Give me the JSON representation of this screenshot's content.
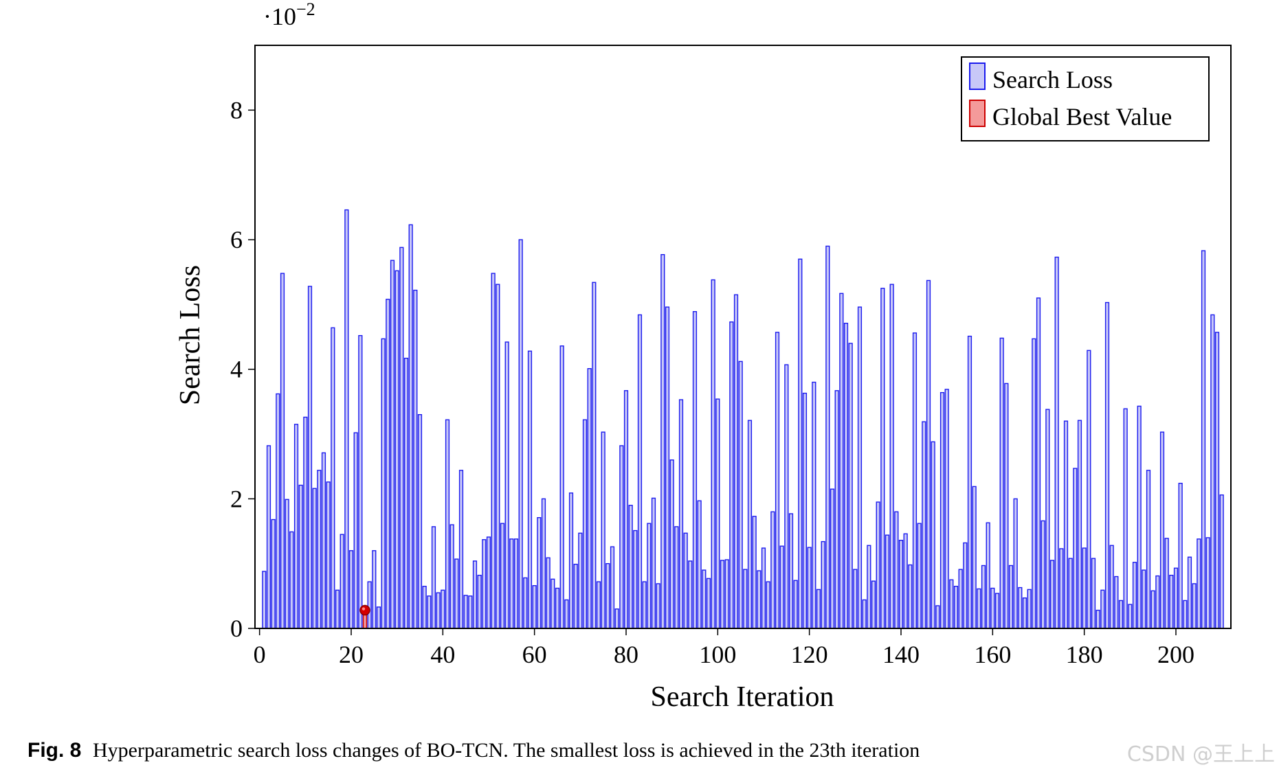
{
  "chart_data": {
    "type": "bar",
    "xlabel": "Search Iteration",
    "ylabel": "Search Loss",
    "scale_label": "·10",
    "scale_exponent": "−2",
    "xlim": [
      -1,
      212
    ],
    "ylim": [
      0,
      9
    ],
    "xticks": [
      0,
      20,
      40,
      60,
      80,
      100,
      120,
      140,
      160,
      180,
      200
    ],
    "yticks": [
      0,
      2,
      4,
      6,
      8
    ],
    "series": [
      {
        "name": "Search Loss",
        "color": "#1a1aee",
        "fill": "#c8c8f8",
        "x_start": 1,
        "values": [
          0.88,
          2.82,
          1.68,
          3.62,
          5.48,
          1.99,
          1.49,
          3.15,
          2.21,
          3.26,
          5.28,
          2.16,
          2.44,
          2.71,
          2.26,
          4.64,
          0.59,
          1.45,
          6.46,
          1.2,
          3.02,
          4.52,
          0.27,
          0.72,
          1.2,
          0.33,
          4.47,
          5.08,
          5.68,
          5.52,
          5.88,
          4.17,
          6.23,
          5.22,
          3.3,
          0.65,
          0.5,
          1.57,
          0.55,
          0.59,
          3.22,
          1.6,
          1.07,
          2.44,
          0.51,
          0.5,
          1.04,
          0.82,
          1.37,
          1.41,
          5.48,
          5.31,
          1.62,
          4.42,
          1.38,
          1.38,
          6.0,
          0.78,
          4.28,
          0.66,
          1.71,
          2.0,
          1.09,
          0.76,
          0.62,
          4.36,
          0.44,
          2.09,
          0.99,
          1.47,
          3.22,
          4.01,
          5.34,
          0.72,
          3.03,
          1.0,
          1.26,
          0.3,
          2.82,
          3.67,
          1.9,
          1.51,
          4.84,
          0.72,
          1.62,
          2.01,
          0.69,
          5.77,
          4.96,
          2.6,
          1.57,
          3.53,
          1.47,
          1.04,
          4.89,
          1.97,
          0.9,
          0.77,
          5.38,
          3.54,
          1.05,
          1.06,
          4.73,
          5.15,
          4.12,
          0.91,
          3.21,
          1.73,
          0.89,
          1.24,
          0.72,
          1.8,
          4.57,
          1.27,
          4.07,
          1.77,
          0.74,
          5.7,
          3.63,
          1.25,
          3.8,
          0.6,
          1.34,
          5.9,
          2.15,
          3.67,
          5.17,
          4.71,
          4.4,
          0.91,
          4.96,
          0.44,
          1.28,
          0.73,
          1.95,
          5.25,
          1.44,
          5.31,
          1.8,
          1.36,
          1.46,
          0.98,
          4.56,
          1.62,
          3.19,
          5.37,
          2.88,
          0.35,
          3.64,
          3.69,
          0.75,
          0.65,
          0.91,
          1.32,
          4.51,
          2.19,
          0.61,
          0.97,
          1.63,
          0.62,
          0.54,
          4.48,
          3.78,
          0.97,
          2.0,
          0.63,
          0.47,
          0.6,
          4.47,
          5.1,
          1.66,
          3.38,
          1.05,
          5.73,
          1.23,
          3.2,
          1.08,
          2.47,
          3.21,
          1.24,
          4.29,
          1.08,
          0.28,
          0.59,
          5.03,
          1.28,
          0.8,
          0.43,
          3.39,
          0.37,
          1.02,
          3.43,
          0.9,
          2.44,
          0.58,
          0.81,
          3.03,
          1.39,
          0.82,
          0.93,
          2.24,
          0.43,
          1.1,
          0.69,
          1.38,
          5.83,
          1.4,
          4.84,
          4.57,
          2.06
        ]
      },
      {
        "name": "Global Best Value",
        "color": "#cc0000",
        "fill": "#f49a9a",
        "x": 23,
        "value": 0.27
      }
    ],
    "legend": [
      {
        "label": "Search Loss"
      },
      {
        "label": "Global Best Value"
      }
    ],
    "legend_position": "top-right"
  },
  "caption": {
    "fig_label": "Fig. 8",
    "text": "Hyperparametric search loss changes of BO-TCN. The smallest loss is achieved in the 23th iteration"
  },
  "watermark": "CSDN @王上上"
}
